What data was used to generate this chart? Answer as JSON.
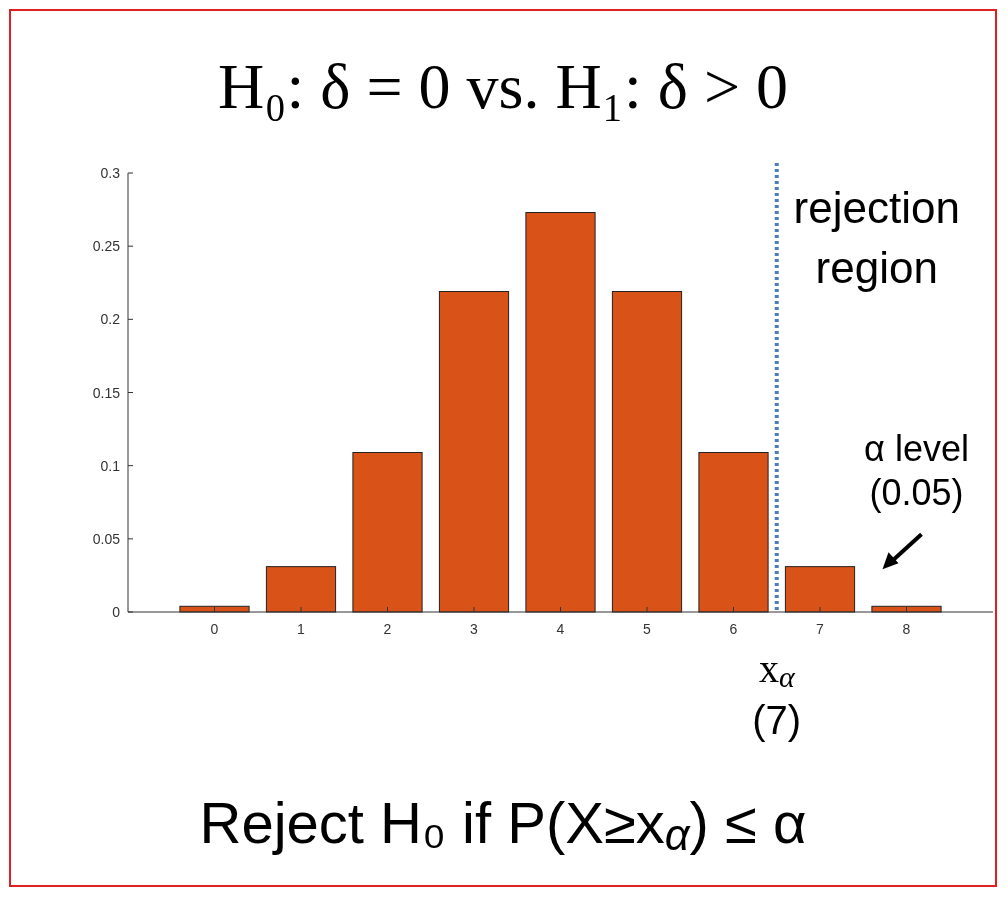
{
  "chart_data": {
    "type": "bar",
    "title": "H₀: δ = 0 vs. H₁: δ > 0",
    "x": [
      0,
      1,
      2,
      3,
      4,
      5,
      6,
      7,
      8
    ],
    "values": [
      0.0039,
      0.031,
      0.109,
      0.219,
      0.273,
      0.219,
      0.109,
      0.031,
      0.0039
    ],
    "color": "#d95319",
    "xlim": [
      -1,
      9
    ],
    "xticks": [
      0,
      1,
      2,
      3,
      4,
      5,
      6,
      7,
      8
    ],
    "ylim": [
      0,
      0.3
    ],
    "yticks": [
      0,
      0.05,
      0.1,
      0.15,
      0.2,
      0.25,
      0.3
    ],
    "grid": false,
    "ref_lines": [
      {
        "axis": "x",
        "value": 6.5,
        "label": "rejection region",
        "color": "#4a7ebb",
        "line_style": "dotted"
      }
    ],
    "annotations": [
      {
        "text": "α level (0.05)",
        "x": 8,
        "y": 0.0039
      },
      {
        "text": "x$_{α}$ (7)",
        "x": 6.5,
        "y": 0
      },
      "Reject H₀ if P(X≥x$_{α}$) ≤ α"
    ]
  }
}
